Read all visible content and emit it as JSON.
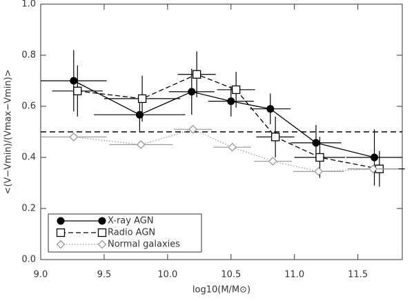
{
  "chart_data": {
    "type": "scatter",
    "xlabel": "log10(M/M⊙)",
    "ylabel": "<(V−Vmin)/(Vmax−Vmin)>",
    "xlim": [
      9.0,
      11.85
    ],
    "ylim": [
      0.0,
      1.0
    ],
    "xticks": [
      {
        "value": 9,
        "label": "9.0"
      },
      9.5,
      {
        "value": 10,
        "label": "10.0"
      },
      10.5,
      {
        "value": 11,
        "label": "11.0"
      },
      11.5
    ],
    "yticks": [
      {
        "value": 0,
        "label": "0.0"
      },
      0.2,
      0.4,
      0.6,
      0.8,
      {
        "value": 1,
        "label": "1.0"
      }
    ],
    "hline": 0.5,
    "legend": "lower left",
    "series": [
      {
        "name": "X-ray AGN",
        "color": "#000000",
        "marker": "circle",
        "linestyle": "solid",
        "x": [
          9.26,
          9.78,
          10.19,
          10.5,
          10.81,
          11.17,
          11.63
        ],
        "values": [
          0.7,
          0.567,
          0.657,
          0.62,
          0.59,
          0.457,
          0.4
        ],
        "xerr": [
          0.26,
          0.36,
          0.18,
          0.18,
          0.16,
          0.2,
          0.22
        ],
        "yerr": [
          0.12,
          0.07,
          0.09,
          0.06,
          0.06,
          0.07,
          0.11
        ]
      },
      {
        "name": "Radio AGN",
        "color": "#000000",
        "marker": "square",
        "linestyle": "dashed",
        "x": [
          9.29,
          9.8,
          10.23,
          10.54,
          10.85,
          11.2,
          11.67
        ],
        "values": [
          0.66,
          0.63,
          0.725,
          0.665,
          0.48,
          0.4,
          0.355
        ],
        "xerr": [
          0.2,
          0.3,
          0.15,
          0.15,
          0.15,
          0.2,
          0.2
        ],
        "yerr": [
          0.1,
          0.09,
          0.09,
          0.07,
          0.08,
          0.08,
          0.07
        ]
      },
      {
        "name": "Normal galaxies",
        "color": "#999999",
        "marker": "diamond",
        "linestyle": "dotted",
        "x": [
          9.26,
          9.79,
          10.2,
          10.51,
          10.83,
          11.19,
          11.62
        ],
        "values": [
          0.48,
          0.45,
          0.51,
          0.44,
          0.385,
          0.345,
          0.355
        ],
        "xerr": [
          0.26,
          0.25,
          0.15,
          0.15,
          0.15,
          0.2,
          0.2
        ],
        "yerr": [
          0,
          0,
          0,
          0,
          0,
          0,
          0
        ]
      }
    ]
  }
}
